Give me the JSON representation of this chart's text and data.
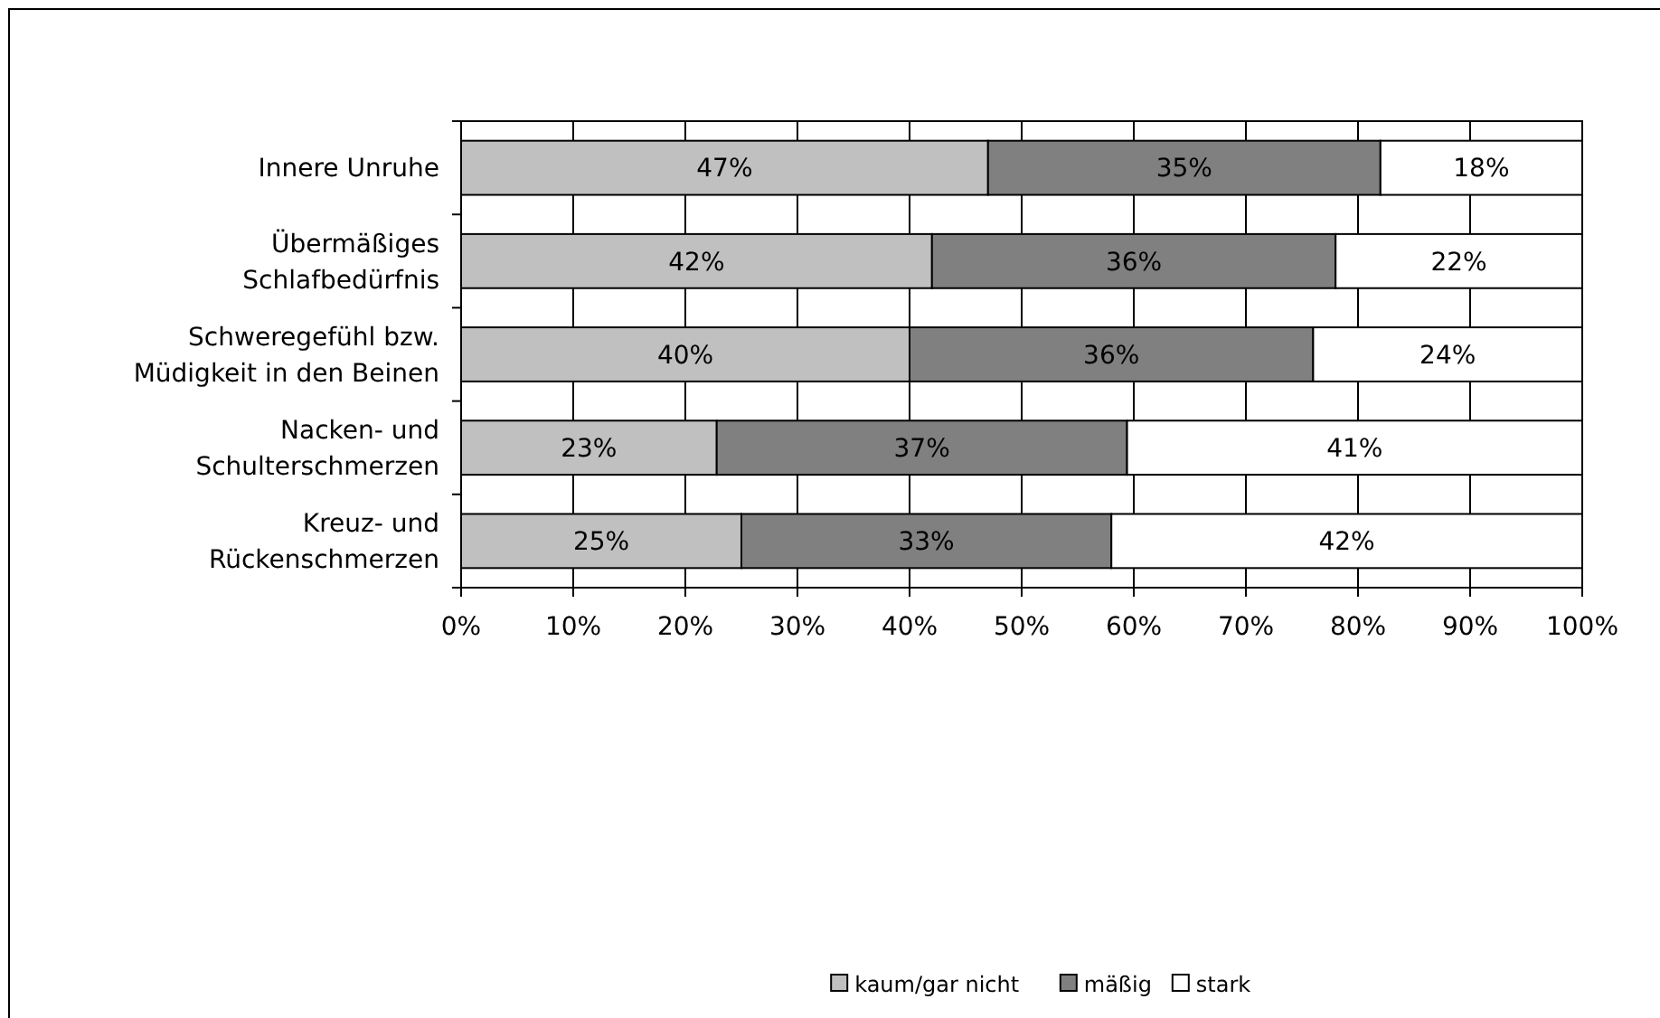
{
  "chart_data": {
    "type": "bar",
    "orientation": "horizontal",
    "stacked": true,
    "categories": [
      "Innere Unruhe",
      "Übermäßiges Schlafbedürfnis",
      "Schweregefühl bzw. Müdigkeit in den Beinen",
      "Nacken- und Schulterschmerzen",
      "Kreuz- und Rückenschmerzen"
    ],
    "series": [
      {
        "name": "kaum/gar nicht",
        "color": "#c0c0c0",
        "values": [
          47,
          42,
          40,
          22.8,
          25
        ],
        "value_labels": [
          "47%",
          "42%",
          "40%",
          "23%",
          "25%"
        ]
      },
      {
        "name": "mäßig",
        "color": "#808080",
        "values": [
          35,
          36,
          36,
          36.6,
          33
        ],
        "value_labels": [
          "35%",
          "36%",
          "36%",
          "37%",
          "33%"
        ]
      },
      {
        "name": "stark",
        "color": "#ffffff",
        "values": [
          18,
          22,
          24,
          40.6,
          42
        ],
        "value_labels": [
          "18%",
          "22%",
          "24%",
          "41%",
          "42%"
        ]
      }
    ],
    "xlim": [
      0,
      100
    ],
    "xticks": [
      {
        "value": 0,
        "label": "0%"
      },
      {
        "value": 10,
        "label": "10%"
      },
      {
        "value": 20,
        "label": "20%"
      },
      {
        "value": 30,
        "label": "30%"
      },
      {
        "value": 40,
        "label": "40%"
      },
      {
        "value": 50,
        "label": "50%"
      },
      {
        "value": 60,
        "label": "60%"
      },
      {
        "value": 70,
        "label": "70%"
      },
      {
        "value": 80,
        "label": "80%"
      },
      {
        "value": 90,
        "label": "90%"
      },
      {
        "value": 100,
        "label": "100%"
      }
    ],
    "grid": "x",
    "legend": "bottom"
  }
}
